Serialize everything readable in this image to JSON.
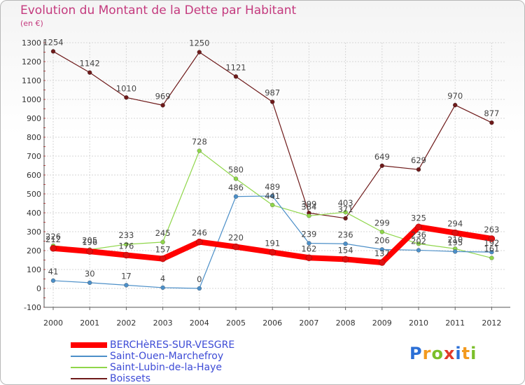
{
  "chart_data": {
    "type": "line",
    "title": "Evolution du Montant de la Dette par Habitant",
    "subtitle": "(en €)",
    "x": [
      "2000",
      "2001",
      "2002",
      "2003",
      "2004",
      "2005",
      "2006",
      "2007",
      "2008",
      "2009",
      "2010",
      "2011",
      "2012"
    ],
    "ylim": [
      -100,
      1300
    ],
    "yticks": [
      -100,
      0,
      100,
      200,
      300,
      400,
      500,
      600,
      700,
      800,
      900,
      1000,
      1100,
      1200,
      1300
    ],
    "grid": true,
    "legend_position": "bottom-left",
    "series": [
      {
        "name": "BERCHèRES-SUR-VESGRE",
        "color": "#ff0000",
        "values": [
          212,
          196,
          176,
          157,
          246,
          220,
          191,
          162,
          154,
          137,
          325,
          294,
          263
        ]
      },
      {
        "name": "Saint-Ouen-Marchefroy",
        "color": "#4c8fc8",
        "values": [
          41,
          30,
          17,
          4,
          0,
          486,
          489,
          239,
          236,
          206,
          202,
          195,
          192
        ]
      },
      {
        "name": "Saint-Lubin-de-la-Haye",
        "color": "#8fd64a",
        "values": [
          226,
          205,
          233,
          245,
          728,
          580,
          441,
          384,
          403,
          299,
          236,
          210,
          161
        ]
      },
      {
        "name": "Boissets",
        "color": "#6e1a1a",
        "values": [
          1254,
          1142,
          1010,
          969,
          1250,
          1121,
          987,
          399,
          371,
          649,
          629,
          970,
          877
        ]
      }
    ]
  },
  "logo": {
    "letters": [
      "P",
      "r",
      "o",
      "x",
      "i",
      "t",
      "i"
    ],
    "colors": [
      "#2b6fd6",
      "#f39a1e",
      "#7bbf2a",
      "#e23a2a",
      "#2b6fd6",
      "#f39a1e",
      "#7bbf2a"
    ]
  }
}
